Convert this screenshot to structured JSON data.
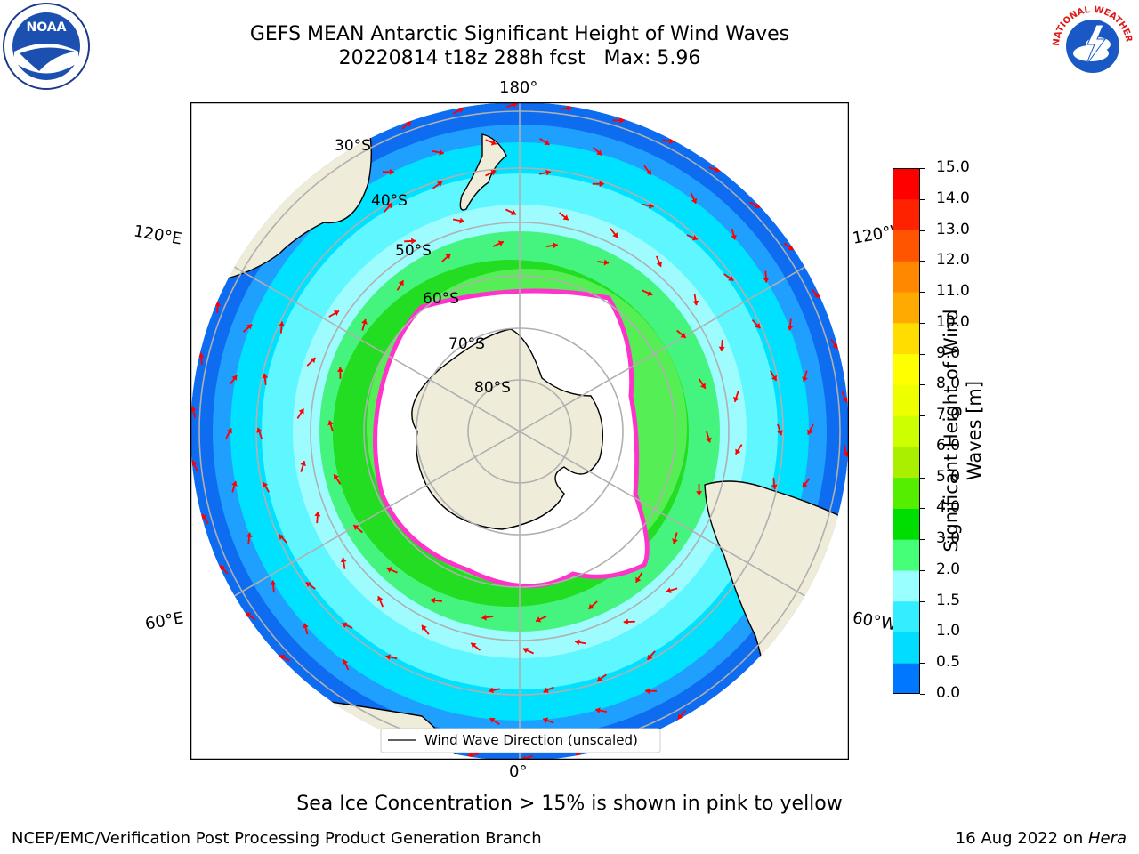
{
  "title": {
    "line1": "GEFS MEAN Antarctic Significant Height of Wind Waves",
    "line2": "20220814 t18z 288h fcst   Max: 5.96"
  },
  "map": {
    "projection": "south-polar-stereographic",
    "longitude_labels": [
      "180°",
      "120°E",
      "120°W",
      "60°E",
      "60°W",
      "0°"
    ],
    "latitude_labels": [
      "30°S",
      "40°S",
      "50°S",
      "60°S",
      "70°S",
      "80°S"
    ],
    "legend_label": "Wind Wave Direction (unscaled)",
    "colors": {
      "land": "#efecd9",
      "ocean_outside": "#ffffff",
      "sea_ice_edge": "#ff33cc",
      "arrow": "#ff0000",
      "grid": "#b0b0b0"
    }
  },
  "colorbar": {
    "label": "Significant Height of Wind Waves [m]",
    "ticks": [
      "0.0",
      "0.5",
      "1.0",
      "1.5",
      "2.0",
      "3.0",
      "4.0",
      "5.0",
      "6.0",
      "7.0",
      "8.0",
      "9.0",
      "10.0",
      "11.0",
      "12.0",
      "13.0",
      "14.0",
      "15.0"
    ],
    "colors": [
      "#0000ff",
      "#0077ff",
      "#00ddff",
      "#33eeff",
      "#99ffff",
      "#44ff77",
      "#00dd00",
      "#55ee00",
      "#aaee00",
      "#ccff00",
      "#eeff00",
      "#ffff00",
      "#ffdd00",
      "#ffaa00",
      "#ff8800",
      "#ff5500",
      "#ff2200",
      "#ff0000"
    ]
  },
  "footnote": "Sea Ice Concentration > 15% is shown in pink to yellow",
  "credit_left": "NCEP/EMC/Verification Post Processing Product Generation Branch",
  "credit_right": {
    "date": "16 Aug 2022 on ",
    "machine": "Hera"
  },
  "logos": {
    "left": "NOAA",
    "right": "NATIONAL WEATHER SERVICE"
  }
}
